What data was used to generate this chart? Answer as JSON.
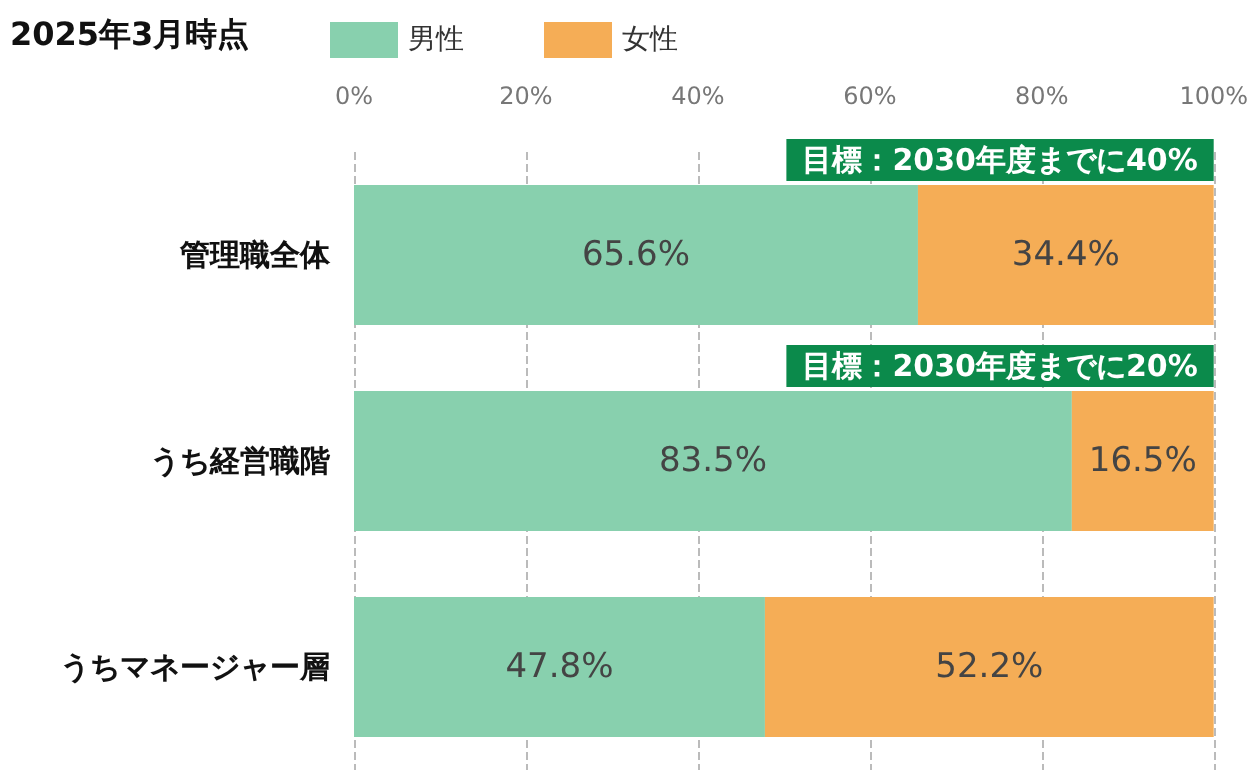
{
  "chart_data": {
    "type": "bar",
    "orientation": "horizontal",
    "stacked": true,
    "title": "2025年3月時点",
    "categories": [
      "管理職全体",
      "うち経営職階",
      "うちマネージャー層"
    ],
    "series": [
      {
        "name": "男性",
        "color": "#88d0ae",
        "values": [
          65.6,
          83.5,
          47.8
        ],
        "value_labels": [
          "65.6%",
          "83.5%",
          "47.8%"
        ]
      },
      {
        "name": "女性",
        "color": "#f5ad56",
        "values": [
          34.4,
          16.5,
          52.2
        ],
        "value_labels": [
          "34.4%",
          "16.5%",
          "52.2%"
        ]
      }
    ],
    "xlim": [
      0,
      100
    ],
    "xticks": [
      {
        "value": 0,
        "label": "0%"
      },
      {
        "value": 20,
        "label": "20%"
      },
      {
        "value": 40,
        "label": "40%"
      },
      {
        "value": 60,
        "label": "60%"
      },
      {
        "value": 80,
        "label": "80%"
      },
      {
        "value": 100,
        "label": "100%"
      }
    ],
    "grid": "x",
    "legend": "top",
    "annotations": [
      "目標：2030年度までに40%",
      "目標：2030年度までに20%"
    ]
  }
}
